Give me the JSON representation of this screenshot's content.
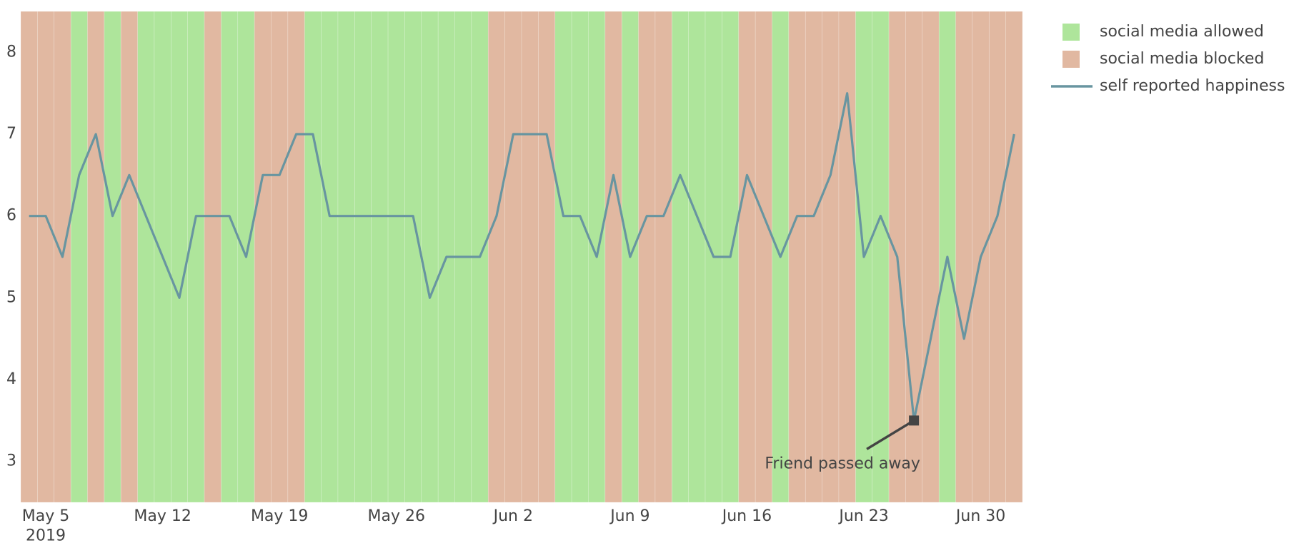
{
  "chart_data": {
    "type": "bar-line",
    "x": [
      "2019-05-04",
      "2019-05-05",
      "2019-05-06",
      "2019-05-07",
      "2019-05-08",
      "2019-05-09",
      "2019-05-10",
      "2019-05-11",
      "2019-05-12",
      "2019-05-13",
      "2019-05-14",
      "2019-05-15",
      "2019-05-16",
      "2019-05-17",
      "2019-05-18",
      "2019-05-19",
      "2019-05-20",
      "2019-05-21",
      "2019-05-22",
      "2019-05-23",
      "2019-05-24",
      "2019-05-25",
      "2019-05-26",
      "2019-05-27",
      "2019-05-28",
      "2019-05-29",
      "2019-05-30",
      "2019-05-31",
      "2019-06-01",
      "2019-06-02",
      "2019-06-03",
      "2019-06-04",
      "2019-06-05",
      "2019-06-06",
      "2019-06-07",
      "2019-06-08",
      "2019-06-09",
      "2019-06-10",
      "2019-06-11",
      "2019-06-12",
      "2019-06-13",
      "2019-06-14",
      "2019-06-15",
      "2019-06-16",
      "2019-06-17",
      "2019-06-18",
      "2019-06-19",
      "2019-06-20",
      "2019-06-21",
      "2019-06-22",
      "2019-06-23",
      "2019-06-24",
      "2019-06-25",
      "2019-06-26",
      "2019-06-27",
      "2019-06-28",
      "2019-06-29",
      "2019-06-30",
      "2019-07-01",
      "2019-07-02"
    ],
    "series": [
      {
        "name": "social media allowed",
        "kind": "bar",
        "color": "#aee59b",
        "values": [
          null,
          null,
          null,
          8.5,
          null,
          8.5,
          null,
          8.5,
          8.5,
          8.5,
          8.5,
          null,
          8.5,
          8.5,
          null,
          null,
          null,
          8.5,
          8.5,
          8.5,
          8.5,
          8.5,
          8.5,
          8.5,
          8.5,
          8.5,
          8.5,
          8.5,
          null,
          null,
          null,
          null,
          8.5,
          8.5,
          8.5,
          null,
          8.5,
          null,
          null,
          8.5,
          8.5,
          8.5,
          8.5,
          null,
          null,
          8.5,
          null,
          null,
          null,
          null,
          8.5,
          8.5,
          null,
          null,
          null,
          8.5,
          null,
          null,
          null,
          null
        ]
      },
      {
        "name": "social media blocked",
        "kind": "bar",
        "color": "#e1b8a1",
        "values": [
          8.5,
          8.5,
          8.5,
          null,
          8.5,
          null,
          8.5,
          null,
          null,
          null,
          null,
          8.5,
          null,
          null,
          8.5,
          8.5,
          8.5,
          null,
          null,
          null,
          null,
          null,
          null,
          null,
          null,
          null,
          null,
          null,
          8.5,
          8.5,
          8.5,
          8.5,
          null,
          null,
          null,
          8.5,
          null,
          8.5,
          8.5,
          null,
          null,
          null,
          null,
          8.5,
          8.5,
          null,
          8.5,
          8.5,
          8.5,
          8.5,
          null,
          null,
          8.5,
          8.5,
          8.5,
          null,
          8.5,
          8.5,
          8.5,
          8.5
        ]
      },
      {
        "name": "self reported happiness",
        "kind": "line",
        "color": "#6895a0",
        "values": [
          6,
          6,
          5.5,
          6.5,
          7,
          6,
          6.5,
          6,
          5.5,
          5,
          6,
          6,
          6,
          5.5,
          6.5,
          6.5,
          7,
          7,
          6,
          6,
          6,
          6,
          6,
          6,
          5,
          5.5,
          5.5,
          5.5,
          6,
          7,
          7,
          7,
          6,
          6,
          5.5,
          6.5,
          5.5,
          6,
          6,
          6.5,
          6,
          5.5,
          5.5,
          6.5,
          6,
          5.5,
          6,
          6,
          6.5,
          7.5,
          5.5,
          6,
          5.5,
          3.5,
          4.5,
          5.5,
          4.5,
          5.5,
          6,
          7
        ]
      }
    ],
    "xlim": [
      "2019-05-03T12:00",
      "2019-07-02T12:00"
    ],
    "xticks": [
      {
        "value": "2019-05-05",
        "label": "May 5\n2019"
      },
      {
        "value": "2019-05-12",
        "label": "May 12"
      },
      {
        "value": "2019-05-19",
        "label": "May 19"
      },
      {
        "value": "2019-05-26",
        "label": "May 26"
      },
      {
        "value": "2019-06-02",
        "label": "Jun 2"
      },
      {
        "value": "2019-06-09",
        "label": "Jun 9"
      },
      {
        "value": "2019-06-16",
        "label": "Jun 16"
      },
      {
        "value": "2019-06-23",
        "label": "Jun 23"
      },
      {
        "value": "2019-06-30",
        "label": "Jun 30"
      }
    ],
    "ylim": [
      2.5,
      8.5
    ],
    "yticks": [
      3,
      4,
      5,
      6,
      7,
      8
    ],
    "grid": false,
    "legend": "right",
    "annotations": [
      {
        "text": "Friend passed away",
        "x": "2019-06-26",
        "y": 3.5
      }
    ]
  }
}
